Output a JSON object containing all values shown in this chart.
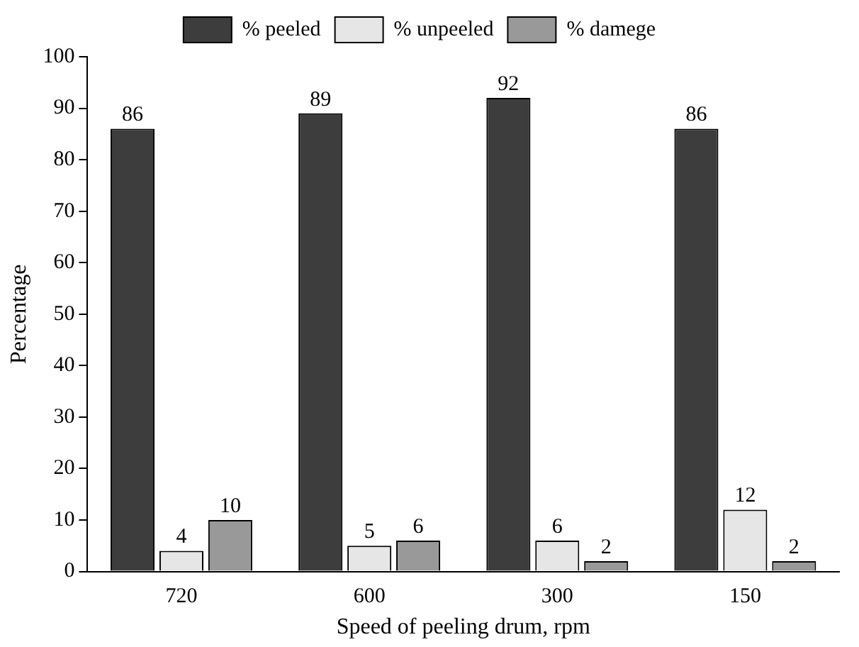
{
  "chart_data": {
    "type": "bar",
    "xlabel": "Speed of peeling drum, rpm",
    "ylabel": "Percentage",
    "categories": [
      "720",
      "600",
      "300",
      "150"
    ],
    "series": [
      {
        "name": "% peeled",
        "color": "#3d3d3d",
        "values": [
          86,
          89,
          92,
          86
        ]
      },
      {
        "name": "% unpeeled",
        "color": "#e6e6e6",
        "values": [
          4,
          5,
          6,
          12
        ]
      },
      {
        "name": "% damege",
        "color": "#999999",
        "values": [
          10,
          6,
          2,
          2
        ]
      }
    ],
    "ylim": [
      0,
      100
    ],
    "yticks": [
      0,
      10,
      20,
      30,
      40,
      50,
      60,
      70,
      80,
      90,
      100
    ],
    "grid": false,
    "legend": "top",
    "data_labels": true
  }
}
